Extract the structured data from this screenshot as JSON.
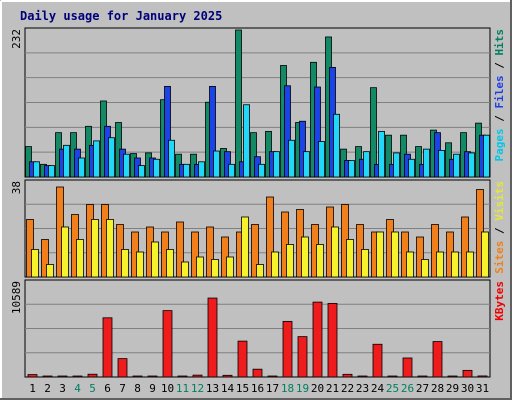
{
  "chart_data": {
    "type": "bar",
    "title": "Daily usage for January 2025",
    "days": [
      "1",
      "2",
      "3",
      "4",
      "5",
      "6",
      "7",
      "8",
      "9",
      "10",
      "11",
      "12",
      "13",
      "14",
      "15",
      "16",
      "17",
      "18",
      "19",
      "20",
      "21",
      "22",
      "23",
      "24",
      "25",
      "26",
      "27",
      "28",
      "29",
      "30",
      "31"
    ],
    "weekend_days": [
      4,
      5,
      11,
      12,
      18,
      19,
      25,
      26
    ],
    "panels": [
      {
        "id": "top",
        "ymax": 232,
        "ymax_label": "232",
        "legend": [
          {
            "text": "Pages",
            "color": "#00c8e8"
          },
          {
            "text": " / ",
            "color": "#000000"
          },
          {
            "text": "Files",
            "color": "#1e3ee8"
          },
          {
            "text": " / ",
            "color": "#000000"
          },
          {
            "text": "Hits",
            "color": "#008060"
          }
        ],
        "series": [
          {
            "name": "Hits",
            "color": "#138a66",
            "values": [
              48,
              20,
              70,
              70,
              80,
              120,
              86,
              37,
              38,
              122,
              36,
              36,
              118,
              45,
              232,
              70,
              72,
              176,
              86,
              181,
              221,
              44,
              48,
              141,
              66,
              66,
              48,
              74,
              54,
              70,
              85
            ]
          },
          {
            "name": "Files",
            "color": "#1a44e8",
            "values": [
              24,
              18,
              44,
              44,
              50,
              80,
              44,
              30,
              30,
              143,
              20,
              20,
              143,
              40,
              24,
              32,
              40,
              144,
              88,
              142,
              173,
              26,
              28,
              20,
              20,
              36,
              20,
              70,
              28,
              40,
              66
            ]
          },
          {
            "name": "Pages",
            "color": "#22d8f8",
            "values": [
              24,
              18,
              50,
              30,
              57,
              62,
              36,
              18,
              28,
              58,
              20,
              24,
              41,
              20,
              114,
              20,
              40,
              58,
              40,
              56,
              99,
              26,
              40,
              72,
              38,
              28,
              44,
              42,
              36,
              38,
              66
            ]
          }
        ]
      },
      {
        "id": "mid",
        "ymax": 38,
        "ymax_label": "38",
        "legend": [
          {
            "text": "Sites",
            "color": "#f08018"
          },
          {
            "text": " / ",
            "color": "#000000"
          },
          {
            "text": "Visits",
            "color": "#e8e830"
          }
        ],
        "series": [
          {
            "name": "Sites",
            "color": "#f07f1c",
            "values": [
              23,
              15,
              36,
              25,
              29,
              29,
              21,
              18,
              20,
              18,
              22,
              18,
              20,
              16,
              18,
              21,
              32,
              26,
              27,
              21,
              28,
              29,
              21,
              18,
              23,
              18,
              16,
              21,
              18,
              24,
              35
            ]
          },
          {
            "name": "Visits",
            "color": "#f6f22c",
            "values": [
              11,
              5,
              20,
              15,
              23,
              23,
              11,
              10,
              14,
              11,
              6,
              8,
              7,
              8,
              24,
              5,
              10,
              13,
              16,
              13,
              20,
              15,
              11,
              18,
              18,
              10,
              7,
              10,
              10,
              10,
              18
            ]
          }
        ]
      },
      {
        "id": "bot",
        "ymax": 10589,
        "ymax_label": "10589",
        "legend": [
          {
            "text": "KBytes",
            "color": "#f00000"
          }
        ],
        "series": [
          {
            "name": "KBytes",
            "color": "#ee1c1c",
            "values": [
              270,
              80,
              60,
              60,
              310,
              6600,
              2050,
              60,
              60,
              7400,
              60,
              210,
              8800,
              190,
              4000,
              870,
              60,
              6200,
              4500,
              8350,
              8200,
              300,
              60,
              3650,
              60,
              2120,
              60,
              3950,
              60,
              740,
              120
            ]
          }
        ]
      }
    ]
  }
}
